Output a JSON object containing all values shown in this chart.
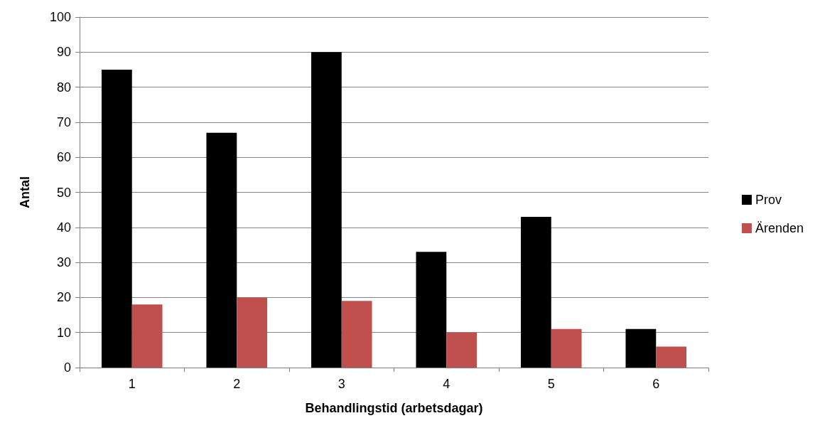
{
  "chart_data": {
    "type": "bar",
    "xlabel": "Behandlingstid (arbetsdagar)",
    "ylabel": "Antal",
    "categories": [
      "1",
      "2",
      "3",
      "4",
      "5",
      "6"
    ],
    "series": [
      {
        "name": "Prov",
        "color": "#000000",
        "values": [
          85,
          67,
          90,
          33,
          43,
          11
        ]
      },
      {
        "name": "Ärenden",
        "color": "#c0504d",
        "values": [
          18,
          20,
          19,
          10,
          11,
          6
        ]
      }
    ],
    "ylim": [
      0,
      100
    ],
    "yticks": [
      0,
      10,
      20,
      30,
      40,
      50,
      60,
      70,
      80,
      90,
      100
    ],
    "grid": "y",
    "legend": "right"
  }
}
